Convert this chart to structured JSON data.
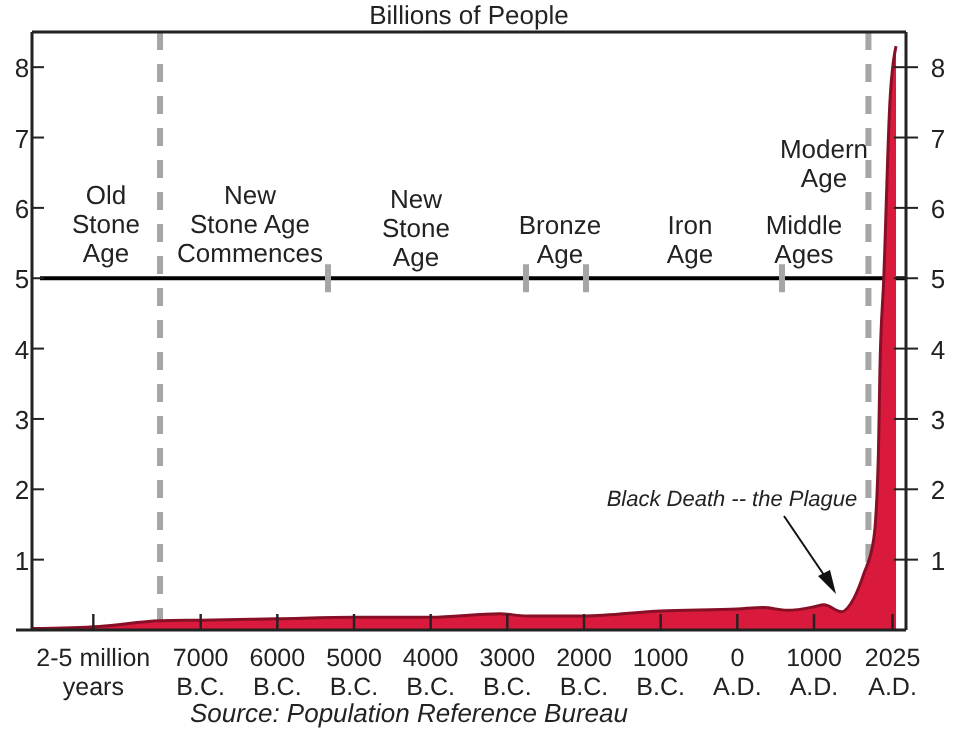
{
  "chart_data": {
    "type": "area",
    "title": "Billions of People",
    "x": [
      -9200,
      -8320,
      -7530,
      -7000,
      -6000,
      -5000,
      -4000,
      -3100,
      -2750,
      -2000,
      -1000,
      0,
      340,
      650,
      1000,
      1130,
      1360,
      1520,
      1650,
      1780,
      1840,
      1860,
      1910,
      1990,
      2070
    ],
    "series": [
      {
        "color": "#d91a3c",
        "values": [
          0.02,
          0.05,
          0.13,
          0.14,
          0.16,
          0.18,
          0.18,
          0.23,
          0.2,
          0.2,
          0.27,
          0.3,
          0.32,
          0.28,
          0.33,
          0.36,
          0.26,
          0.45,
          0.8,
          1.3,
          2.5,
          3.7,
          5,
          7.5,
          8.3
        ]
      }
    ],
    "xlim": [
      -9200,
      2200
    ],
    "xticks": [
      {
        "value": -8400,
        "label": "2-5 million\nyears"
      },
      {
        "value": -7000,
        "label": "7000\nB.C."
      },
      {
        "value": -6000,
        "label": "6000\nB.C."
      },
      {
        "value": -5000,
        "label": "5000\nB.C."
      },
      {
        "value": -4000,
        "label": "4000\nB.C."
      },
      {
        "value": -3000,
        "label": "3000\nB.C."
      },
      {
        "value": -2000,
        "label": "2000\nB.C."
      },
      {
        "value": -1000,
        "label": "1000\nB.C."
      },
      {
        "value": 0,
        "label": "0\nA.D."
      },
      {
        "value": 1000,
        "label": "1000\nA.D."
      },
      {
        "value": 2025,
        "label": "2025\nA.D."
      }
    ],
    "ylim": [
      0,
      8.5
    ],
    "yticks": [
      1,
      2,
      3,
      4,
      5,
      6,
      7,
      8
    ],
    "y2lim": [
      0,
      8.5
    ],
    "y2ticks": [
      1,
      2,
      3,
      4,
      5,
      6,
      7,
      8
    ],
    "grid": false,
    "ref_lines": [
      {
        "axis": "y",
        "value": 5,
        "color": "#000000",
        "line_style": "solid"
      },
      {
        "axis": "x",
        "value": -7530,
        "color": "#a6a6a6",
        "line_style": "dashed"
      },
      {
        "axis": "x",
        "value": 1710,
        "color": "#a6a6a6",
        "line_style": "dashed"
      }
    ],
    "annotations": [
      "Old\nStone\nAge",
      "New\nStone Age\nCommences",
      "New\nStone\nAge",
      "Bronze\nAge",
      "Iron\nAge",
      "Middle\nAges",
      "Modern\nAge",
      "Black Death -- the Plague",
      "Source: Population Reference Bureau"
    ]
  }
}
